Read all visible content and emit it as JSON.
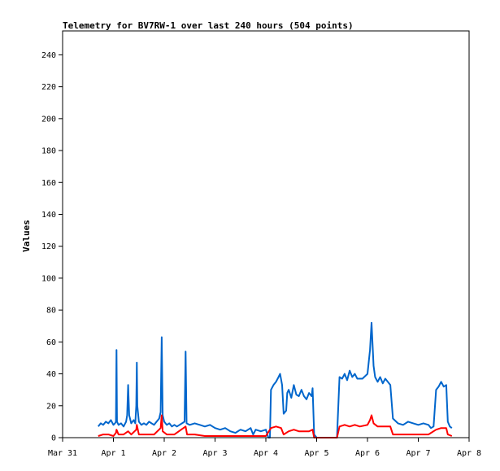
{
  "chart_data": {
    "type": "line",
    "title": "Telemetry for BV7RW-1 over last 240 hours (504 points)",
    "xlabel": "",
    "ylabel": "Values",
    "x_unit": "days",
    "xlim": [
      0,
      8
    ],
    "ylim": [
      0,
      255
    ],
    "x_tick_values": [
      0,
      1,
      2,
      3,
      4,
      5,
      6,
      7,
      8
    ],
    "x_tick_labels": [
      "Mar 31",
      "Apr 1",
      "Apr 2",
      "Apr 3",
      "Apr 4",
      "Apr 5",
      "Apr 6",
      "Apr 7",
      "Apr 8"
    ],
    "y_ticks": [
      0,
      20,
      40,
      60,
      80,
      100,
      120,
      140,
      160,
      180,
      200,
      220,
      240
    ],
    "grid": false,
    "legend": "none",
    "series": [
      {
        "color": "#0066cc",
        "points": [
          [
            0.7,
            7
          ],
          [
            0.75,
            9
          ],
          [
            0.8,
            8
          ],
          [
            0.85,
            10
          ],
          [
            0.9,
            9
          ],
          [
            0.95,
            11
          ],
          [
            1.0,
            8
          ],
          [
            1.03,
            9
          ],
          [
            1.05,
            10
          ],
          [
            1.06,
            55
          ],
          [
            1.07,
            10
          ],
          [
            1.1,
            8
          ],
          [
            1.15,
            9
          ],
          [
            1.2,
            7
          ],
          [
            1.25,
            10
          ],
          [
            1.27,
            14
          ],
          [
            1.29,
            33
          ],
          [
            1.31,
            14
          ],
          [
            1.35,
            9
          ],
          [
            1.4,
            11
          ],
          [
            1.43,
            9
          ],
          [
            1.45,
            20
          ],
          [
            1.46,
            47
          ],
          [
            1.47,
            20
          ],
          [
            1.5,
            10
          ],
          [
            1.55,
            8
          ],
          [
            1.6,
            9
          ],
          [
            1.65,
            8
          ],
          [
            1.7,
            10
          ],
          [
            1.75,
            9
          ],
          [
            1.8,
            8
          ],
          [
            1.85,
            10
          ],
          [
            1.9,
            12
          ],
          [
            1.93,
            16
          ],
          [
            1.95,
            63
          ],
          [
            1.97,
            14
          ],
          [
            2.0,
            10
          ],
          [
            2.05,
            8
          ],
          [
            2.1,
            9
          ],
          [
            2.15,
            7
          ],
          [
            2.2,
            8
          ],
          [
            2.25,
            7
          ],
          [
            2.3,
            8
          ],
          [
            2.35,
            9
          ],
          [
            2.4,
            10
          ],
          [
            2.42,
            54
          ],
          [
            2.44,
            9
          ],
          [
            2.5,
            8
          ],
          [
            2.6,
            9
          ],
          [
            2.7,
            8
          ],
          [
            2.8,
            7
          ],
          [
            2.9,
            8
          ],
          [
            3.0,
            6
          ],
          [
            3.1,
            5
          ],
          [
            3.2,
            6
          ],
          [
            3.3,
            4
          ],
          [
            3.4,
            3
          ],
          [
            3.5,
            5
          ],
          [
            3.6,
            4
          ],
          [
            3.7,
            6
          ],
          [
            3.75,
            2
          ],
          [
            3.8,
            5
          ],
          [
            3.9,
            4
          ],
          [
            4.0,
            5
          ],
          [
            4.05,
            0
          ],
          [
            4.08,
            0
          ],
          [
            4.1,
            30
          ],
          [
            4.15,
            33
          ],
          [
            4.2,
            35
          ],
          [
            4.25,
            38
          ],
          [
            4.28,
            40
          ],
          [
            4.32,
            33
          ],
          [
            4.35,
            15
          ],
          [
            4.4,
            17
          ],
          [
            4.42,
            28
          ],
          [
            4.45,
            30
          ],
          [
            4.5,
            25
          ],
          [
            4.55,
            33
          ],
          [
            4.6,
            27
          ],
          [
            4.65,
            26
          ],
          [
            4.7,
            30
          ],
          [
            4.75,
            26
          ],
          [
            4.8,
            24
          ],
          [
            4.85,
            28
          ],
          [
            4.9,
            26
          ],
          [
            4.92,
            31
          ],
          [
            4.95,
            2
          ],
          [
            5.0,
            0
          ],
          [
            5.1,
            0
          ],
          [
            5.2,
            0
          ],
          [
            5.3,
            0
          ],
          [
            5.4,
            0
          ],
          [
            5.45,
            38
          ],
          [
            5.5,
            37
          ],
          [
            5.55,
            40
          ],
          [
            5.6,
            36
          ],
          [
            5.65,
            42
          ],
          [
            5.7,
            38
          ],
          [
            5.75,
            40
          ],
          [
            5.8,
            37
          ],
          [
            5.9,
            37
          ],
          [
            6.0,
            40
          ],
          [
            6.05,
            55
          ],
          [
            6.08,
            72
          ],
          [
            6.12,
            45
          ],
          [
            6.15,
            38
          ],
          [
            6.2,
            35
          ],
          [
            6.25,
            38
          ],
          [
            6.3,
            34
          ],
          [
            6.35,
            37
          ],
          [
            6.4,
            35
          ],
          [
            6.45,
            33
          ],
          [
            6.5,
            12
          ],
          [
            6.6,
            9
          ],
          [
            6.7,
            8
          ],
          [
            6.8,
            10
          ],
          [
            6.9,
            9
          ],
          [
            7.0,
            8
          ],
          [
            7.1,
            9
          ],
          [
            7.2,
            8
          ],
          [
            7.25,
            6
          ],
          [
            7.3,
            7
          ],
          [
            7.35,
            30
          ],
          [
            7.4,
            32
          ],
          [
            7.45,
            35
          ],
          [
            7.5,
            32
          ],
          [
            7.55,
            33
          ],
          [
            7.58,
            10
          ],
          [
            7.62,
            7
          ],
          [
            7.66,
            6
          ]
        ]
      },
      {
        "color": "#ff0000",
        "points": [
          [
            0.7,
            1
          ],
          [
            0.8,
            2
          ],
          [
            0.9,
            2
          ],
          [
            1.0,
            1
          ],
          [
            1.05,
            3
          ],
          [
            1.06,
            5
          ],
          [
            1.1,
            2
          ],
          [
            1.2,
            2
          ],
          [
            1.29,
            4
          ],
          [
            1.35,
            2
          ],
          [
            1.45,
            5
          ],
          [
            1.46,
            8
          ],
          [
            1.5,
            2
          ],
          [
            1.6,
            2
          ],
          [
            1.7,
            2
          ],
          [
            1.8,
            2
          ],
          [
            1.93,
            6
          ],
          [
            1.95,
            14
          ],
          [
            1.97,
            4
          ],
          [
            2.05,
            2
          ],
          [
            2.2,
            2
          ],
          [
            2.42,
            7
          ],
          [
            2.45,
            2
          ],
          [
            2.6,
            2
          ],
          [
            2.8,
            1
          ],
          [
            3.0,
            1
          ],
          [
            3.2,
            1
          ],
          [
            3.4,
            1
          ],
          [
            3.6,
            1
          ],
          [
            3.8,
            1
          ],
          [
            4.0,
            1
          ],
          [
            4.1,
            6
          ],
          [
            4.2,
            7
          ],
          [
            4.3,
            6
          ],
          [
            4.35,
            2
          ],
          [
            4.45,
            4
          ],
          [
            4.55,
            5
          ],
          [
            4.65,
            4
          ],
          [
            4.75,
            4
          ],
          [
            4.85,
            4
          ],
          [
            4.92,
            5
          ],
          [
            4.95,
            0
          ],
          [
            5.2,
            0
          ],
          [
            5.4,
            0
          ],
          [
            5.45,
            7
          ],
          [
            5.55,
            8
          ],
          [
            5.65,
            7
          ],
          [
            5.75,
            8
          ],
          [
            5.85,
            7
          ],
          [
            6.0,
            8
          ],
          [
            6.05,
            11
          ],
          [
            6.08,
            14
          ],
          [
            6.12,
            9
          ],
          [
            6.2,
            7
          ],
          [
            6.3,
            7
          ],
          [
            6.45,
            7
          ],
          [
            6.5,
            2
          ],
          [
            6.6,
            2
          ],
          [
            6.8,
            2
          ],
          [
            7.0,
            2
          ],
          [
            7.2,
            2
          ],
          [
            7.35,
            5
          ],
          [
            7.45,
            6
          ],
          [
            7.55,
            6
          ],
          [
            7.58,
            2
          ],
          [
            7.66,
            1
          ]
        ]
      },
      {
        "color": "#000000",
        "points": [
          [
            0.7,
            0
          ],
          [
            7.66,
            0
          ]
        ]
      }
    ]
  }
}
